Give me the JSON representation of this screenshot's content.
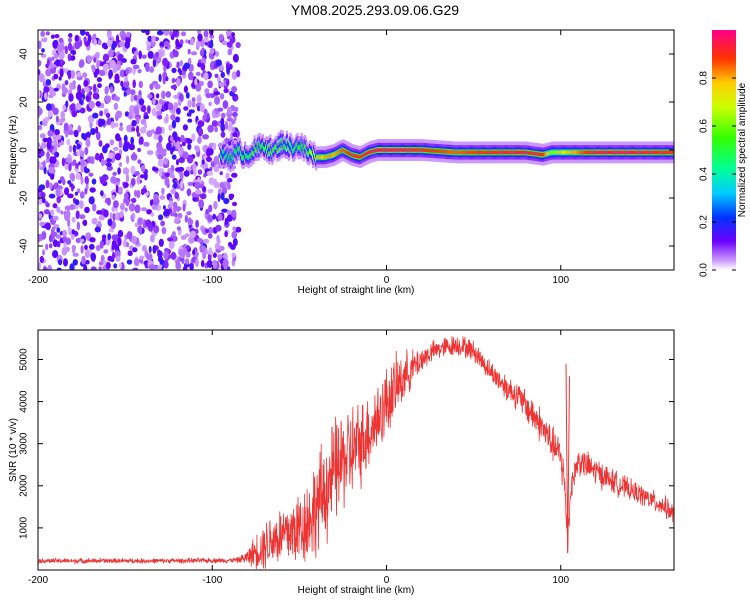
{
  "title": "YM08.2025.293.09.06.G29",
  "chart_data": [
    {
      "type": "heatmap",
      "xlabel": "Height of straight line (km)",
      "ylabel": "Frequency (Hz)",
      "xlim": [
        -200,
        165
      ],
      "ylim": [
        -50,
        50
      ],
      "xticks": [
        -200,
        -100,
        0,
        100
      ],
      "xtick_labels": [
        "-200",
        "-100",
        "0",
        "100"
      ],
      "yticks": [
        -40,
        -20,
        0,
        20,
        40
      ],
      "ytick_labels": [
        "-40",
        "-20",
        "0",
        "20",
        "40"
      ],
      "colorbar": {
        "label": "Normalized spectral amplitude",
        "range": [
          0,
          1
        ],
        "ticks": [
          0.0,
          0.2,
          0.4,
          0.6,
          0.8
        ],
        "tick_labels": [
          "0.0",
          "0.2",
          "0.4",
          "0.6",
          "0.8"
        ]
      },
      "noise_region_x": [
        -200,
        -85
      ],
      "signal_line": {
        "x": [
          -95,
          -90,
          -85,
          -80,
          -75,
          -70,
          -65,
          -60,
          -55,
          -50,
          -45,
          -40,
          -35,
          -30,
          -25,
          -20,
          -15,
          -10,
          -5,
          0,
          10,
          20,
          40,
          60,
          80,
          90,
          95,
          100,
          120,
          140,
          165
        ],
        "freq": [
          -2,
          -3,
          -1,
          -2,
          0,
          2,
          -1,
          3,
          1,
          2,
          -1,
          -3,
          -3,
          -2,
          0,
          -2,
          -3,
          -1,
          0,
          0,
          0,
          0,
          -1,
          -1,
          -1,
          -2,
          -1,
          -1,
          -1,
          -1,
          -1
        ],
        "amplitude": [
          0.45,
          0.5,
          0.55,
          0.5,
          0.6,
          0.55,
          0.6,
          0.55,
          0.5,
          0.55,
          0.6,
          0.75,
          0.8,
          0.8,
          0.85,
          0.9,
          0.9,
          0.95,
          0.95,
          0.95,
          0.95,
          0.9,
          0.85,
          0.9,
          0.95,
          0.9,
          0.6,
          0.7,
          0.95,
          0.95,
          0.9
        ]
      }
    },
    {
      "type": "line",
      "xlabel": "Height of straight line (km)",
      "ylabel": "SNR (10 * v/v)",
      "xlim": [
        -200,
        165
      ],
      "ylim": [
        0,
        5700
      ],
      "xticks": [
        -200,
        -100,
        0,
        100
      ],
      "xtick_labels": [
        "-200",
        "-100",
        "0",
        "100"
      ],
      "yticks": [
        1000,
        2000,
        3000,
        4000,
        5000
      ],
      "ytick_labels": [
        "1000",
        "2000",
        "3000",
        "4000",
        "5000"
      ],
      "series": [
        {
          "name": "SNR",
          "color": "#ee3333",
          "x": [
            -200,
            -180,
            -160,
            -140,
            -120,
            -100,
            -90,
            -85,
            -80,
            -75,
            -70,
            -65,
            -60,
            -55,
            -50,
            -45,
            -40,
            -35,
            -30,
            -25,
            -20,
            -15,
            -10,
            -5,
            0,
            5,
            10,
            15,
            20,
            25,
            30,
            35,
            40,
            45,
            50,
            55,
            60,
            65,
            70,
            75,
            80,
            85,
            90,
            95,
            100,
            102,
            104,
            106,
            110,
            120,
            130,
            140,
            150,
            160,
            165
          ],
          "mean": [
            220,
            215,
            220,
            215,
            220,
            225,
            230,
            240,
            300,
            450,
            600,
            750,
            800,
            900,
            1000,
            1200,
            1500,
            1900,
            2300,
            2600,
            2800,
            3000,
            3300,
            3600,
            4000,
            4300,
            4600,
            4800,
            5000,
            5150,
            5250,
            5300,
            5350,
            5300,
            5200,
            4950,
            4700,
            4500,
            4300,
            4150,
            3900,
            3650,
            3350,
            3000,
            2700,
            2100,
            800,
            2000,
            2600,
            2350,
            2100,
            1900,
            1700,
            1500,
            1300
          ],
          "spread": [
            70,
            70,
            70,
            70,
            70,
            70,
            70,
            80,
            200,
            500,
            700,
            800,
            900,
            1000,
            1100,
            1200,
            1400,
            1500,
            1500,
            1400,
            1400,
            1200,
            1100,
            1100,
            1000,
            900,
            700,
            500,
            400,
            300,
            300,
            300,
            300,
            300,
            300,
            300,
            300,
            350,
            400,
            400,
            450,
            500,
            500,
            500,
            500,
            800,
            500,
            400,
            400,
            400,
            350,
            300,
            300,
            300,
            300
          ]
        }
      ],
      "annotations": [
        {
          "x": 104,
          "y": 4900,
          "label": ""
        }
      ]
    }
  ]
}
